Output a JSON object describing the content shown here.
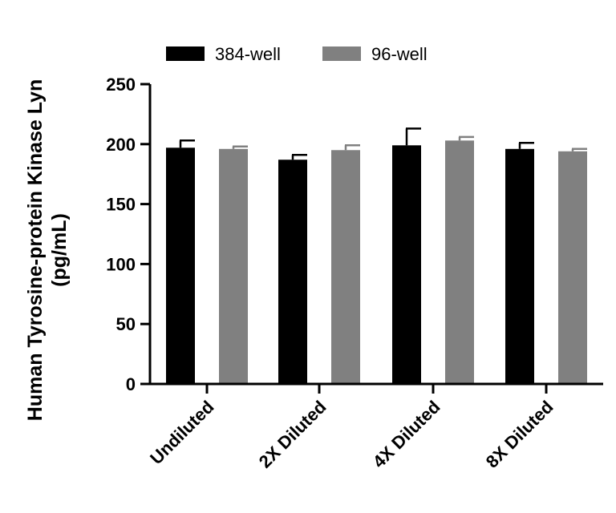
{
  "chart_data": {
    "type": "bar",
    "title": "",
    "xlabel": "",
    "ylabel_lines": [
      "Human Tyrosine-protein Kinase Lyn",
      "(pg/mL)"
    ],
    "categories": [
      "Undiluted",
      "2X Diluted",
      "4X Diluted",
      "8X Diluted"
    ],
    "series": [
      {
        "name": "384-well",
        "color": "#000000",
        "values": [
          197,
          187,
          199,
          196
        ],
        "errors": [
          6,
          4,
          14,
          5
        ]
      },
      {
        "name": "96-well",
        "color": "#808080",
        "values": [
          196,
          195,
          203,
          194
        ],
        "errors": [
          2,
          4,
          3,
          2
        ]
      }
    ],
    "ylim": [
      0,
      250
    ],
    "yticks": [
      0,
      50,
      100,
      150,
      200,
      250
    ],
    "grid": false,
    "legend_position": "top"
  }
}
